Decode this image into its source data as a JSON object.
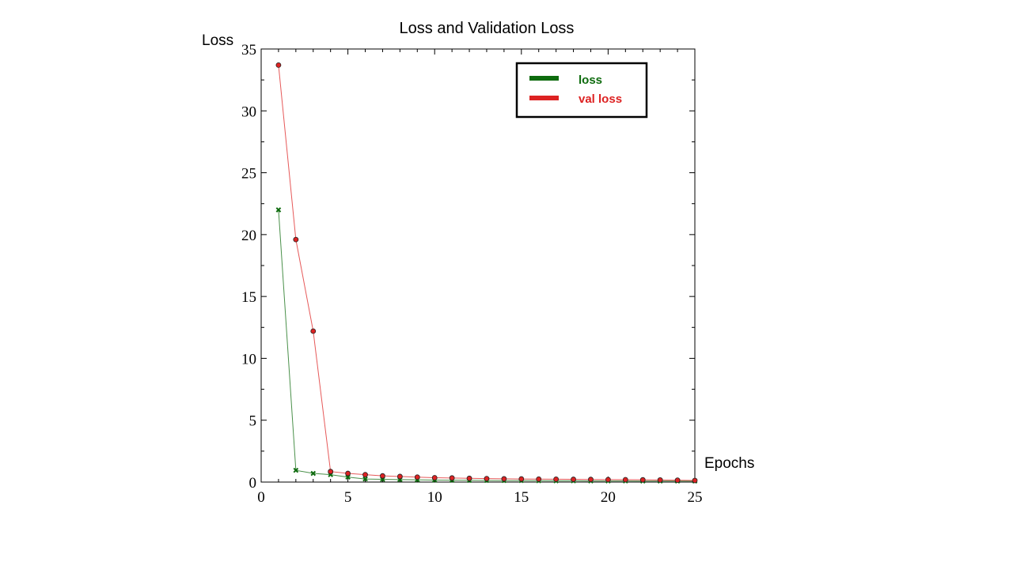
{
  "chart_data": {
    "type": "line",
    "title": "Loss and Validation Loss",
    "xlabel": "Epochs",
    "ylabel": "Loss",
    "xlim": [
      0,
      25
    ],
    "ylim": [
      0,
      35
    ],
    "xticks": [
      0,
      5,
      10,
      15,
      20,
      25
    ],
    "yticks": [
      0,
      5,
      10,
      15,
      20,
      25,
      30,
      35
    ],
    "grid": false,
    "legend_position": "top-right",
    "x": [
      1,
      2,
      3,
      4,
      5,
      6,
      7,
      8,
      9,
      10,
      11,
      12,
      13,
      14,
      15,
      16,
      17,
      18,
      19,
      20,
      21,
      22,
      23,
      24,
      25
    ],
    "series": [
      {
        "name": "loss",
        "color": "#0e6b0e",
        "marker": "x",
        "values": [
          22.0,
          0.95,
          0.7,
          0.6,
          0.4,
          0.25,
          0.22,
          0.2,
          0.18,
          0.16,
          0.15,
          0.14,
          0.13,
          0.12,
          0.12,
          0.11,
          0.1,
          0.1,
          0.09,
          0.09,
          0.09,
          0.08,
          0.08,
          0.08,
          0.08
        ]
      },
      {
        "name": "val loss",
        "color": "#dd2222",
        "marker": "o",
        "values": [
          33.7,
          19.6,
          12.2,
          0.85,
          0.7,
          0.6,
          0.5,
          0.45,
          0.4,
          0.35,
          0.33,
          0.3,
          0.28,
          0.26,
          0.25,
          0.24,
          0.23,
          0.22,
          0.21,
          0.2,
          0.19,
          0.18,
          0.17,
          0.15,
          0.13
        ]
      }
    ]
  }
}
